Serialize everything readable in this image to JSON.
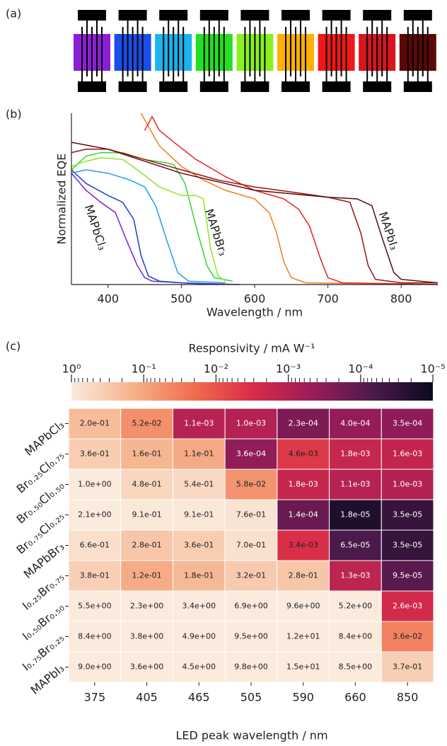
{
  "panel_labels": [
    "(a)",
    "(b)",
    "(c)"
  ],
  "devices": {
    "colors": [
      "#8a1ed6",
      "#1a4ee8",
      "#1ab4f0",
      "#22e022",
      "#8af020",
      "#ffb000",
      "#f01818",
      "#d8141e",
      "#5a0808"
    ]
  },
  "chart_data": [
    {
      "type": "line",
      "xlabel": "Wavelength / nm",
      "ylabel": "Normalized EQE",
      "xlim": [
        350,
        850
      ],
      "ylim": [
        0,
        1
      ],
      "xticks": [
        400,
        500,
        600,
        700,
        800
      ],
      "annotations": [
        "MAPbCl₃",
        "MAPbBr₃",
        "MAPbI₃"
      ],
      "series": [
        {
          "color": "#7b1fd0",
          "x": [
            350,
            370,
            390,
            410,
            425,
            440,
            450,
            460,
            500,
            580
          ],
          "values": [
            0.65,
            0.55,
            0.48,
            0.42,
            0.26,
            0.11,
            0.04,
            0.02,
            0.01,
            0.0
          ]
        },
        {
          "color": "#1a3fd6",
          "x": [
            350,
            370,
            400,
            420,
            435,
            445,
            455,
            470,
            500,
            550
          ],
          "values": [
            0.67,
            0.59,
            0.52,
            0.48,
            0.38,
            0.17,
            0.05,
            0.02,
            0.01,
            0.0
          ]
        },
        {
          "color": "#1ea0e6",
          "x": [
            350,
            370,
            400,
            430,
            450,
            465,
            480,
            495,
            510,
            560
          ],
          "values": [
            0.65,
            0.67,
            0.65,
            0.61,
            0.57,
            0.46,
            0.26,
            0.07,
            0.02,
            0.01
          ]
        },
        {
          "color": "#2fd42f",
          "x": [
            350,
            370,
            390,
            420,
            450,
            480,
            490,
            505,
            520,
            535,
            545,
            570
          ],
          "values": [
            0.67,
            0.75,
            0.77,
            0.77,
            0.73,
            0.71,
            0.7,
            0.59,
            0.34,
            0.11,
            0.04,
            0.02
          ]
        },
        {
          "color": "#8be820",
          "x": [
            350,
            370,
            390,
            420,
            440,
            470,
            500,
            520,
            530,
            540,
            550,
            560
          ],
          "values": [
            0.69,
            0.72,
            0.74,
            0.73,
            0.67,
            0.57,
            0.52,
            0.52,
            0.5,
            0.21,
            0.05,
            0.02
          ]
        },
        {
          "color": "#f07f1a",
          "x": [
            445,
            470,
            500,
            530,
            560,
            600,
            620,
            630,
            640,
            650,
            670,
            850
          ],
          "values": [
            1.0,
            0.81,
            0.69,
            0.61,
            0.55,
            0.5,
            0.42,
            0.3,
            0.13,
            0.04,
            0.01,
            0.0
          ]
        },
        {
          "color": "#e82020",
          "x": [
            450,
            460,
            470,
            490,
            520,
            560,
            600,
            640,
            660,
            675,
            690,
            700,
            720,
            850
          ],
          "values": [
            0.9,
            0.98,
            0.9,
            0.83,
            0.73,
            0.63,
            0.55,
            0.5,
            0.44,
            0.34,
            0.15,
            0.04,
            0.01,
            0.0
          ]
        },
        {
          "color": "#9d1010",
          "x": [
            350,
            370,
            400,
            450,
            500,
            550,
            600,
            650,
            700,
            730,
            745,
            755,
            765,
            800,
            850
          ],
          "values": [
            0.77,
            0.79,
            0.79,
            0.73,
            0.67,
            0.61,
            0.57,
            0.54,
            0.51,
            0.48,
            0.3,
            0.11,
            0.03,
            0.01,
            0.01
          ]
        },
        {
          "color": "#5a0a0a",
          "x": [
            350,
            400,
            450,
            500,
            550,
            600,
            650,
            700,
            740,
            760,
            775,
            790,
            800,
            850
          ],
          "values": [
            0.83,
            0.79,
            0.72,
            0.65,
            0.6,
            0.55,
            0.53,
            0.51,
            0.5,
            0.46,
            0.26,
            0.07,
            0.03,
            0.01
          ]
        }
      ]
    },
    {
      "type": "heatmap",
      "xlabel": "LED peak wavelength / nm",
      "categories": [
        "375",
        "405",
        "465",
        "505",
        "590",
        "660",
        "850"
      ],
      "rows": [
        "MAPbCl₃",
        "Br₀.₂₅Cl₀.₇₅",
        "Br₀.₅₀Cl₀.₅₀",
        "Br₀.₇₅Cl₀.₂₅",
        "MAPbBr₃",
        "I₀.₂₅Br₀.₇₅",
        "I₀.₅₀Br₀.₅₀",
        "I₀.₇₅Br₀.₂₅",
        "MAPbI₃"
      ],
      "values": [
        [
          0.2,
          0.052,
          0.0011,
          0.001,
          0.00023,
          0.0004,
          0.00035
        ],
        [
          0.36,
          0.16,
          0.11,
          0.00036,
          0.0046,
          0.0018,
          0.0016
        ],
        [
          1.0,
          0.48,
          0.54,
          0.058,
          0.0018,
          0.0011,
          0.001
        ],
        [
          2.1,
          0.91,
          0.91,
          0.76,
          0.00014,
          1.8e-05,
          3.5e-05
        ],
        [
          0.66,
          0.28,
          0.36,
          0.7,
          0.0034,
          6.5e-05,
          3.5e-05
        ],
        [
          0.38,
          0.12,
          0.18,
          0.32,
          0.28,
          0.0013,
          9.5e-05
        ],
        [
          5.5,
          2.3,
          3.4,
          6.9,
          9.6,
          5.2,
          0.0026
        ],
        [
          8.4,
          3.8,
          4.9,
          9.5,
          12,
          8.4,
          0.036
        ],
        [
          9.0,
          3.6,
          4.5,
          9.8,
          15,
          8.5,
          0.37
        ]
      ],
      "value_labels": [
        [
          "2.0e-01",
          "5.2e-02",
          "1.1e-03",
          "1.0e-03",
          "2.3e-04",
          "4.0e-04",
          "3.5e-04"
        ],
        [
          "3.6e-01",
          "1.6e-01",
          "1.1e-01",
          "3.6e-04",
          "4.6e-03",
          "1.8e-03",
          "1.6e-03"
        ],
        [
          "1.0e+00",
          "4.8e-01",
          "5.4e-01",
          "5.8e-02",
          "1.8e-03",
          "1.1e-03",
          "1.0e-03"
        ],
        [
          "2.1e+00",
          "9.1e-01",
          "9.1e-01",
          "7.6e-01",
          "1.4e-04",
          "1.8e-05",
          "3.5e-05"
        ],
        [
          "6.6e-01",
          "2.8e-01",
          "3.6e-01",
          "7.0e-01",
          "3.4e-03",
          "6.5e-05",
          "3.5e-05"
        ],
        [
          "3.8e-01",
          "1.2e-01",
          "1.8e-01",
          "3.2e-01",
          "2.8e-01",
          "1.3e-03",
          "9.5e-05"
        ],
        [
          "5.5e+00",
          "2.3e+00",
          "3.4e+00",
          "6.9e+00",
          "9.6e+00",
          "5.2e+00",
          "2.6e-03"
        ],
        [
          "8.4e+00",
          "3.8e+00",
          "4.9e+00",
          "9.5e+00",
          "1.2e+01",
          "8.4e+00",
          "3.6e-02"
        ],
        [
          "9.0e+00",
          "3.6e+00",
          "4.5e+00",
          "9.8e+00",
          "1.5e+01",
          "8.5e+00",
          "3.7e-01"
        ]
      ],
      "colorbar": {
        "label": "Responsivity / mA W⁻¹",
        "scale": "log",
        "lim": [
          1,
          1e-05
        ],
        "colors": [
          "#faebdd",
          "#f6b38d",
          "#f0704f",
          "#d82c48",
          "#9a1c5a",
          "#4c1a4c",
          "#0c0a1c"
        ],
        "ticks": [
          {
            "value": 1,
            "label": "10⁰"
          },
          {
            "value": 0.1,
            "label": "10⁻¹"
          },
          {
            "value": 0.01,
            "label": "10⁻²"
          },
          {
            "value": 0.001,
            "label": "10⁻³"
          },
          {
            "value": 0.0001,
            "label": "10⁻⁴"
          },
          {
            "value": 1e-05,
            "label": "10⁻⁵"
          }
        ],
        "minor_ticks": [
          0.9,
          0.8,
          0.7,
          0.6,
          0.5,
          0.4,
          0.3,
          0.2,
          0.09,
          0.08,
          0.07,
          0.06,
          0.05,
          0.04,
          0.03,
          0.02,
          0.009,
          0.008,
          0.007,
          0.006,
          0.005,
          0.004,
          0.003,
          0.002,
          0.0009,
          0.0008,
          0.0007,
          0.0006,
          0.0005,
          0.0004,
          0.0003,
          0.0002,
          9e-05,
          8e-05,
          7e-05,
          6e-05,
          5e-05,
          4e-05,
          3e-05,
          2e-05
        ]
      }
    }
  ]
}
